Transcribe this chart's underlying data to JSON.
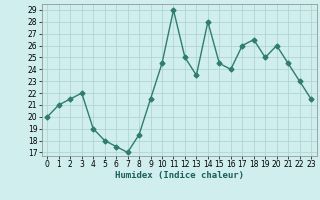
{
  "x": [
    0,
    1,
    2,
    3,
    4,
    5,
    6,
    7,
    8,
    9,
    10,
    11,
    12,
    13,
    14,
    15,
    16,
    17,
    18,
    19,
    20,
    21,
    22,
    23
  ],
  "y": [
    20,
    21,
    21.5,
    22,
    19,
    18,
    17.5,
    17,
    18.5,
    21.5,
    24.5,
    29,
    25,
    23.5,
    28,
    24.5,
    24,
    26,
    26.5,
    25,
    26,
    24.5,
    23,
    21.5
  ],
  "line_color": "#2e7d6e",
  "marker": "D",
  "marker_size": 2.5,
  "linewidth": 1.0,
  "bg_color": "#d0eeee",
  "grid_color": "#b0d4d4",
  "xlabel": "Humidex (Indice chaleur)",
  "xlim": [
    -0.5,
    23.5
  ],
  "ylim": [
    16.7,
    29.5
  ],
  "yticks": [
    17,
    18,
    19,
    20,
    21,
    22,
    23,
    24,
    25,
    26,
    27,
    28,
    29
  ],
  "xticks": [
    0,
    1,
    2,
    3,
    4,
    5,
    6,
    7,
    8,
    9,
    10,
    11,
    12,
    13,
    14,
    15,
    16,
    17,
    18,
    19,
    20,
    21,
    22,
    23
  ]
}
